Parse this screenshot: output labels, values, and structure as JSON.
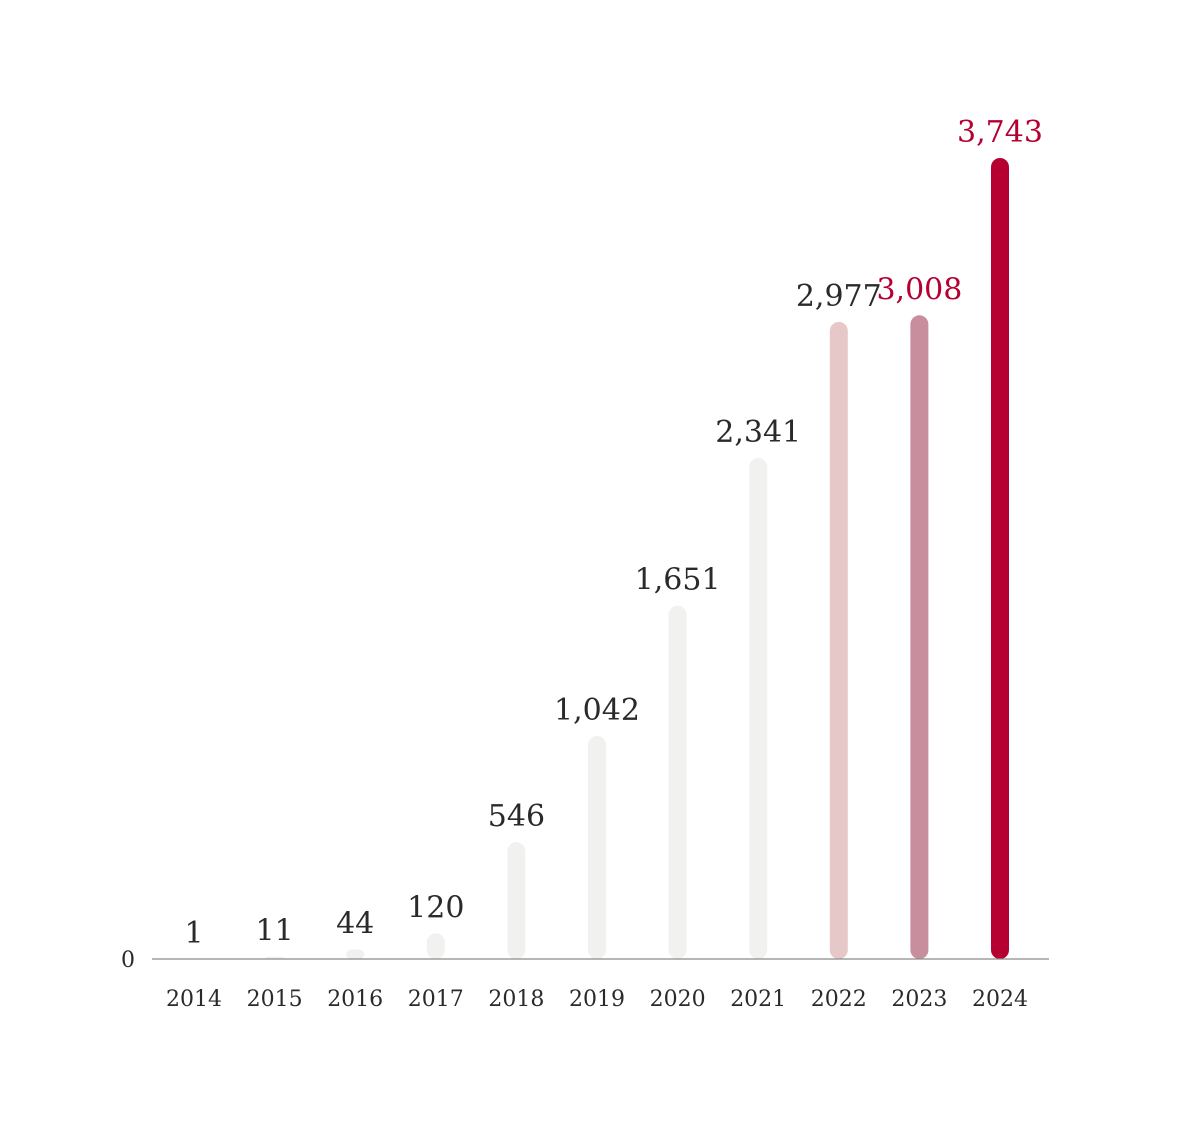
{
  "chart_data": {
    "type": "bar",
    "categories": [
      "2014",
      "2015",
      "2016",
      "2017",
      "2018",
      "2019",
      "2020",
      "2021",
      "2022",
      "2023",
      "2024"
    ],
    "values": [
      1,
      11,
      44,
      120,
      546,
      1042,
      1651,
      2341,
      2977,
      3008,
      3743
    ],
    "value_labels": [
      "1",
      "11",
      "44",
      "120",
      "546",
      "1,042",
      "1,651",
      "2,341",
      "2,977",
      "3,008",
      "3,743"
    ],
    "bar_colors": [
      "#f1f1ef",
      "#f1f1ef",
      "#f1f1ef",
      "#f1f1ef",
      "#f1f1ef",
      "#f1f1ef",
      "#f1f1ef",
      "#f1f1ef",
      "#e6c8c9",
      "#c88e9d",
      "#b50031"
    ],
    "label_colors": [
      "#2a2a2a",
      "#2a2a2a",
      "#2a2a2a",
      "#2a2a2a",
      "#2a2a2a",
      "#2a2a2a",
      "#2a2a2a",
      "#2a2a2a",
      "#2a2a2a",
      "#b50031",
      "#b50031"
    ],
    "y_tick_label": "0",
    "ylim": [
      0,
      3743
    ],
    "grid": false,
    "legend": "none"
  }
}
